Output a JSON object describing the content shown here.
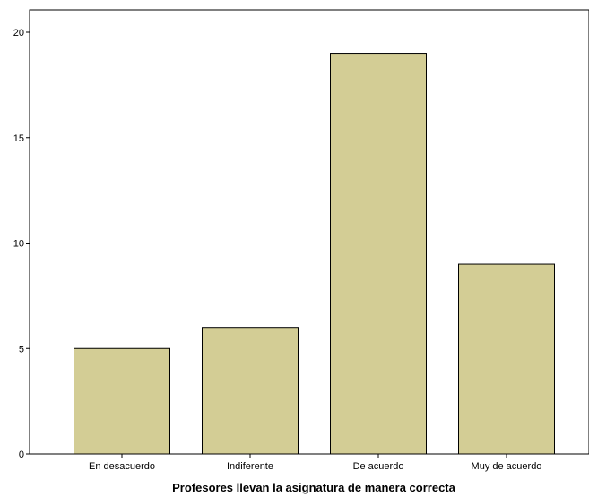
{
  "chart_data": {
    "type": "bar",
    "categories": [
      "En desacuerdo",
      "Indiferente",
      "De acuerdo",
      "Muy de acuerdo"
    ],
    "values": [
      5,
      6,
      19,
      9
    ],
    "title": "",
    "xlabel": "Profesores llevan la asignatura de manera correcta",
    "ylabel": "",
    "ylim": [
      0,
      20
    ],
    "yticks": [
      0,
      5,
      10,
      15,
      20
    ],
    "grid": false,
    "legend": "none",
    "bar_color": "#d3cd95",
    "bar_edge_color": "#000000",
    "background_color": "#ffffff"
  }
}
